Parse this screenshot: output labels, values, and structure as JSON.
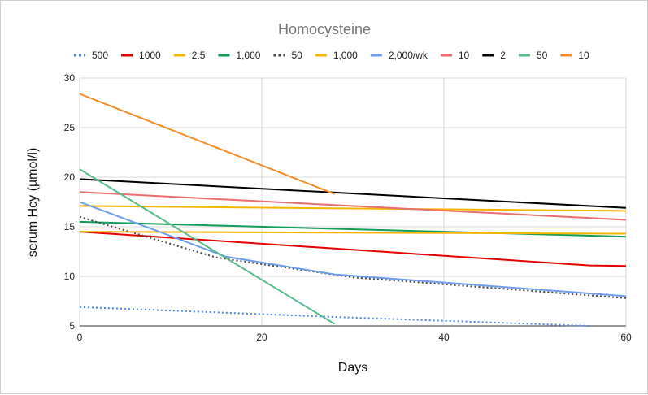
{
  "chart_data": {
    "type": "line",
    "title": "Homocysteine",
    "xlabel": "Days",
    "ylabel": "serum Hcy (µmol/l)",
    "xlim": [
      0,
      60
    ],
    "ylim": [
      5,
      30
    ],
    "xticks": [
      0,
      20,
      40,
      60
    ],
    "yticks": [
      5,
      10,
      15,
      20,
      25,
      30
    ],
    "grid": true,
    "legend_position": "top",
    "series": [
      {
        "name": "500",
        "color": "#4a86e8",
        "dash": "dotted",
        "points": [
          [
            0,
            6.9
          ],
          [
            28,
            5.9
          ],
          [
            56,
            5.0
          ]
        ]
      },
      {
        "name": "1000",
        "color": "#e50000",
        "dash": "solid",
        "points": [
          [
            0,
            14.5
          ],
          [
            28,
            12.8
          ],
          [
            56,
            11.1
          ],
          [
            60,
            11.05
          ]
        ]
      },
      {
        "name": "2.5",
        "color": "#f4b400",
        "dash": "solid",
        "points": [
          [
            0,
            17.1
          ],
          [
            60,
            16.6
          ]
        ]
      },
      {
        "name": "1,000",
        "color": "#0f9d58",
        "dash": "solid",
        "points": [
          [
            0,
            15.5
          ],
          [
            60,
            14.0
          ]
        ]
      },
      {
        "name": "50",
        "color": "#444444",
        "dash": "dotted",
        "points": [
          [
            0,
            16.0
          ],
          [
            15,
            11.9
          ],
          [
            30,
            9.9
          ],
          [
            60,
            7.8
          ]
        ]
      },
      {
        "name": "1,000",
        "color": "#f4b400",
        "dash": "solid",
        "points": [
          [
            0,
            14.5
          ],
          [
            60,
            14.3
          ]
        ]
      },
      {
        "name": "2,000/wk",
        "color": "#6d9eeb",
        "dash": "solid",
        "points": [
          [
            0,
            17.5
          ],
          [
            16,
            12.0
          ],
          [
            28,
            10.2
          ],
          [
            60,
            8.0
          ]
        ]
      },
      {
        "name": "10",
        "color": "#ea6e6e",
        "dash": "solid",
        "points": [
          [
            0,
            18.5
          ],
          [
            60,
            15.7
          ]
        ]
      },
      {
        "name": "2",
        "color": "#000000",
        "dash": "solid",
        "points": [
          [
            0,
            19.8
          ],
          [
            60,
            16.9
          ]
        ]
      },
      {
        "name": "50",
        "color": "#57bb8a",
        "dash": "solid",
        "points": [
          [
            0,
            20.8
          ],
          [
            28,
            5.2
          ]
        ]
      },
      {
        "name": "10",
        "color": "#f28c28",
        "dash": "solid",
        "points": [
          [
            0,
            28.4
          ],
          [
            28,
            18.3
          ]
        ]
      }
    ]
  }
}
